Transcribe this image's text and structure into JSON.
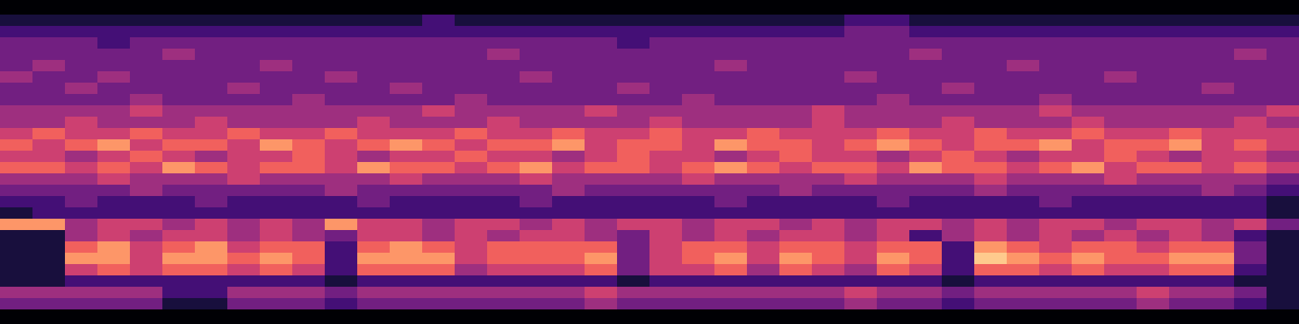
{
  "chart_data": {
    "type": "heatmap",
    "tick_labels": false,
    "color": "magma",
    "clim": [
      0,
      9
    ],
    "cells": [
      [
        0,
        0,
        0,
        0,
        0,
        0,
        0,
        0,
        0,
        0,
        0,
        0,
        0,
        0,
        0,
        0,
        0,
        0,
        0,
        0,
        0,
        0,
        0,
        0,
        0,
        0,
        0,
        0,
        0,
        0,
        0,
        0,
        0,
        0,
        0,
        0,
        0,
        0,
        0,
        0
      ],
      [
        1,
        1,
        1,
        1,
        1,
        1,
        1,
        1,
        1,
        1,
        1,
        1,
        1,
        2,
        1,
        1,
        1,
        1,
        1,
        1,
        1,
        1,
        1,
        1,
        1,
        1,
        2,
        2,
        1,
        1,
        1,
        1,
        1,
        1,
        1,
        1,
        1,
        1,
        1,
        1
      ],
      [
        2,
        2,
        2,
        2,
        2,
        2,
        2,
        2,
        2,
        2,
        2,
        2,
        2,
        2,
        2,
        2,
        2,
        2,
        2,
        2,
        2,
        2,
        2,
        2,
        2,
        2,
        3,
        3,
        2,
        2,
        2,
        2,
        2,
        2,
        2,
        2,
        2,
        2,
        2,
        2
      ],
      [
        3,
        3,
        3,
        2,
        3,
        3,
        3,
        3,
        3,
        3,
        3,
        3,
        3,
        3,
        3,
        3,
        3,
        3,
        3,
        2,
        3,
        3,
        3,
        3,
        3,
        3,
        3,
        3,
        3,
        3,
        3,
        3,
        3,
        3,
        3,
        3,
        3,
        3,
        3,
        3
      ],
      [
        3,
        3,
        3,
        3,
        3,
        4,
        3,
        3,
        3,
        3,
        3,
        3,
        3,
        3,
        3,
        4,
        3,
        3,
        3,
        3,
        3,
        3,
        3,
        3,
        3,
        3,
        3,
        3,
        4,
        3,
        3,
        3,
        3,
        3,
        3,
        3,
        3,
        3,
        4,
        3
      ],
      [
        3,
        4,
        3,
        3,
        3,
        3,
        3,
        3,
        4,
        3,
        3,
        3,
        3,
        3,
        3,
        3,
        3,
        3,
        3,
        3,
        3,
        3,
        4,
        3,
        3,
        3,
        3,
        3,
        3,
        3,
        3,
        4,
        3,
        3,
        3,
        3,
        3,
        3,
        3,
        3
      ],
      [
        4,
        3,
        3,
        4,
        3,
        3,
        3,
        3,
        3,
        3,
        4,
        3,
        3,
        3,
        3,
        3,
        4,
        3,
        3,
        3,
        3,
        3,
        3,
        3,
        3,
        3,
        4,
        3,
        3,
        3,
        3,
        3,
        3,
        3,
        4,
        3,
        3,
        3,
        3,
        3
      ],
      [
        3,
        3,
        4,
        3,
        3,
        3,
        3,
        4,
        3,
        3,
        3,
        3,
        4,
        3,
        3,
        3,
        3,
        3,
        3,
        4,
        3,
        3,
        3,
        3,
        3,
        3,
        3,
        3,
        3,
        4,
        3,
        3,
        3,
        3,
        3,
        3,
        3,
        4,
        3,
        3
      ],
      [
        3,
        3,
        3,
        3,
        4,
        3,
        3,
        3,
        3,
        4,
        3,
        3,
        3,
        3,
        4,
        3,
        3,
        3,
        3,
        3,
        3,
        4,
        3,
        3,
        3,
        3,
        3,
        4,
        3,
        3,
        3,
        3,
        4,
        3,
        3,
        3,
        3,
        3,
        3,
        3
      ],
      [
        4,
        4,
        4,
        4,
        5,
        4,
        4,
        4,
        4,
        4,
        4,
        4,
        4,
        5,
        4,
        4,
        4,
        4,
        5,
        4,
        4,
        4,
        4,
        4,
        4,
        5,
        4,
        4,
        4,
        4,
        4,
        4,
        5,
        4,
        4,
        4,
        4,
        4,
        4,
        5
      ],
      [
        4,
        4,
        5,
        4,
        4,
        4,
        5,
        4,
        4,
        4,
        4,
        5,
        4,
        4,
        4,
        5,
        4,
        4,
        4,
        4,
        5,
        4,
        4,
        4,
        4,
        5,
        4,
        4,
        4,
        5,
        4,
        4,
        4,
        5,
        4,
        4,
        4,
        4,
        5,
        4
      ],
      [
        5,
        6,
        5,
        5,
        6,
        5,
        5,
        6,
        5,
        5,
        6,
        5,
        5,
        5,
        6,
        5,
        5,
        6,
        5,
        5,
        6,
        5,
        5,
        6,
        5,
        5,
        5,
        6,
        5,
        5,
        6,
        5,
        5,
        6,
        5,
        5,
        6,
        5,
        5,
        5
      ],
      [
        6,
        5,
        6,
        7,
        5,
        6,
        6,
        5,
        7,
        6,
        5,
        6,
        7,
        6,
        5,
        6,
        6,
        7,
        5,
        6,
        6,
        5,
        7,
        6,
        6,
        5,
        6,
        7,
        6,
        5,
        6,
        6,
        7,
        5,
        6,
        6,
        7,
        5,
        6,
        5
      ],
      [
        5,
        5,
        4,
        5,
        6,
        5,
        4,
        5,
        5,
        6,
        5,
        4,
        5,
        5,
        6,
        5,
        5,
        4,
        5,
        6,
        5,
        5,
        4,
        5,
        6,
        5,
        5,
        4,
        5,
        6,
        5,
        4,
        5,
        5,
        6,
        5,
        4,
        5,
        5,
        4
      ],
      [
        6,
        6,
        5,
        6,
        5,
        7,
        6,
        5,
        6,
        6,
        5,
        7,
        6,
        6,
        5,
        6,
        7,
        5,
        6,
        6,
        5,
        6,
        7,
        6,
        5,
        6,
        6,
        5,
        7,
        6,
        6,
        5,
        6,
        7,
        5,
        6,
        6,
        5,
        6,
        5
      ],
      [
        4,
        4,
        4,
        5,
        4,
        4,
        4,
        5,
        4,
        4,
        4,
        4,
        5,
        4,
        4,
        4,
        5,
        4,
        4,
        4,
        4,
        5,
        4,
        4,
        4,
        4,
        5,
        4,
        4,
        4,
        5,
        4,
        4,
        4,
        5,
        4,
        4,
        4,
        4,
        3
      ],
      [
        3,
        3,
        3,
        3,
        4,
        3,
        3,
        3,
        3,
        3,
        4,
        3,
        3,
        3,
        3,
        3,
        3,
        4,
        3,
        3,
        3,
        3,
        3,
        3,
        4,
        3,
        3,
        3,
        3,
        3,
        4,
        3,
        3,
        3,
        3,
        3,
        3,
        4,
        3,
        2
      ],
      [
        2,
        2,
        3,
        2,
        2,
        2,
        3,
        2,
        2,
        2,
        2,
        3,
        2,
        2,
        2,
        2,
        3,
        2,
        2,
        2,
        2,
        2,
        3,
        2,
        2,
        2,
        2,
        3,
        2,
        2,
        2,
        2,
        3,
        2,
        2,
        2,
        2,
        2,
        2,
        1
      ],
      [
        1,
        2,
        2,
        2,
        2,
        2,
        2,
        2,
        2,
        2,
        2,
        2,
        2,
        2,
        2,
        2,
        2,
        2,
        2,
        2,
        2,
        2,
        2,
        2,
        2,
        2,
        2,
        2,
        2,
        2,
        2,
        2,
        2,
        2,
        2,
        2,
        2,
        2,
        2,
        1
      ],
      [
        7,
        7,
        4,
        5,
        5,
        4,
        5,
        4,
        5,
        4,
        7,
        5,
        5,
        4,
        5,
        5,
        4,
        5,
        4,
        5,
        5,
        4,
        5,
        5,
        4,
        5,
        4,
        5,
        5,
        4,
        5,
        4,
        5,
        5,
        4,
        5,
        5,
        4,
        5,
        3
      ],
      [
        1,
        1,
        4,
        5,
        4,
        5,
        5,
        4,
        5,
        4,
        3,
        5,
        5,
        4,
        5,
        4,
        5,
        5,
        4,
        3,
        5,
        4,
        5,
        4,
        5,
        5,
        4,
        5,
        2,
        4,
        5,
        4,
        5,
        4,
        5,
        4,
        5,
        4,
        2,
        1
      ],
      [
        1,
        1,
        6,
        7,
        5,
        6,
        7,
        5,
        6,
        6,
        2,
        6,
        7,
        6,
        5,
        6,
        6,
        6,
        6,
        3,
        5,
        6,
        6,
        5,
        6,
        6,
        5,
        6,
        6,
        2,
        7,
        6,
        5,
        6,
        6,
        5,
        6,
        6,
        3,
        1
      ],
      [
        1,
        1,
        7,
        7,
        5,
        7,
        7,
        6,
        7,
        6,
        2,
        7,
        7,
        7,
        5,
        6,
        6,
        6,
        7,
        3,
        5,
        6,
        7,
        5,
        7,
        6,
        5,
        7,
        6,
        2,
        8,
        7,
        6,
        7,
        6,
        6,
        7,
        7,
        3,
        1
      ],
      [
        1,
        1,
        5,
        6,
        5,
        6,
        6,
        5,
        6,
        5,
        2,
        6,
        6,
        6,
        4,
        5,
        5,
        5,
        6,
        3,
        5,
        5,
        6,
        4,
        6,
        5,
        4,
        6,
        5,
        2,
        6,
        6,
        5,
        6,
        5,
        5,
        6,
        6,
        2,
        1
      ],
      [
        1,
        1,
        2,
        2,
        2,
        2,
        2,
        2,
        2,
        2,
        1,
        2,
        2,
        2,
        2,
        2,
        2,
        2,
        2,
        1,
        2,
        2,
        2,
        2,
        2,
        2,
        2,
        2,
        2,
        1,
        2,
        2,
        2,
        2,
        2,
        2,
        2,
        2,
        1,
        1
      ],
      [
        4,
        4,
        4,
        4,
        4,
        2,
        2,
        4,
        4,
        4,
        3,
        4,
        4,
        4,
        4,
        4,
        4,
        4,
        5,
        4,
        4,
        4,
        4,
        4,
        4,
        4,
        5,
        4,
        4,
        3,
        4,
        4,
        4,
        4,
        4,
        5,
        4,
        4,
        3,
        1
      ],
      [
        3,
        3,
        3,
        3,
        3,
        1,
        1,
        3,
        3,
        3,
        2,
        3,
        3,
        3,
        3,
        3,
        3,
        3,
        4,
        3,
        3,
        3,
        3,
        3,
        3,
        3,
        4,
        3,
        3,
        2,
        3,
        3,
        3,
        3,
        3,
        4,
        3,
        3,
        2,
        1
      ],
      [
        0,
        0,
        0,
        0,
        0,
        0,
        0,
        0,
        0,
        0,
        0,
        0,
        0,
        0,
        0,
        0,
        0,
        0,
        0,
        0,
        0,
        0,
        0,
        0,
        0,
        0,
        0,
        0,
        0,
        0,
        0,
        0,
        0,
        0,
        0,
        0,
        0,
        0,
        0,
        0
      ]
    ]
  }
}
